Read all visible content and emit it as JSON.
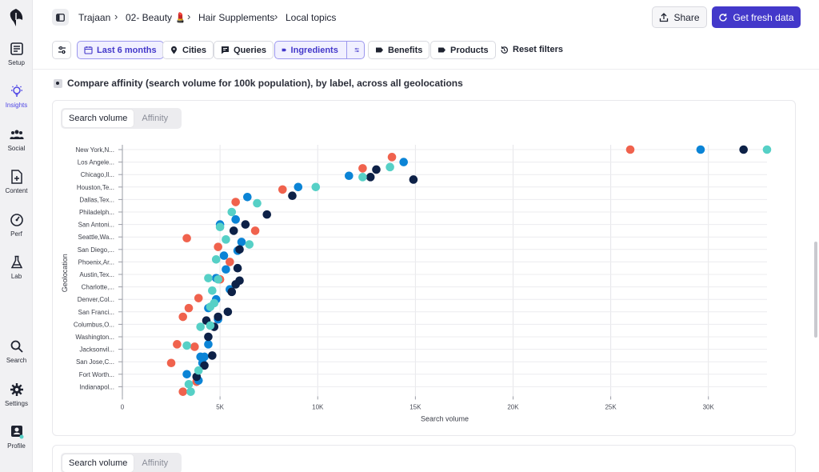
{
  "sidebar": {
    "items": [
      {
        "label": "Setup",
        "icon": "setup-icon"
      },
      {
        "label": "Insights",
        "icon": "lightbulb-icon",
        "active": true
      },
      {
        "label": "Social",
        "icon": "users-icon"
      },
      {
        "label": "Content",
        "icon": "document-plus-icon"
      },
      {
        "label": "Perf",
        "icon": "gauge-icon"
      },
      {
        "label": "Lab",
        "icon": "flask-icon"
      },
      {
        "label": "Search",
        "icon": "search-icon"
      },
      {
        "label": "Settings",
        "icon": "gear-icon"
      },
      {
        "label": "Profile",
        "icon": "profile-icon"
      }
    ]
  },
  "breadcrumb": [
    "Trajaan",
    "02- Beauty 💄",
    "Hair Supplements",
    "Local topics"
  ],
  "header": {
    "share_label": "Share",
    "fresh_label": "Get fresh data"
  },
  "filters": {
    "items": [
      "Last 6 months",
      "Cities",
      "Queries",
      "Ingredients",
      "Benefits",
      "Products"
    ],
    "reset_label": "Reset filters"
  },
  "section": {
    "title": "Compare affinity (search volume for 100k population), by label, across all geolocations"
  },
  "toggle": {
    "options": [
      "Search volume",
      "Affinity"
    ],
    "selected": "Search volume"
  },
  "colors": {
    "accent": "#4338ca",
    "series": [
      "#f0624d",
      "#0b84d6",
      "#0d2147",
      "#56d0c6"
    ]
  },
  "chart_data": {
    "type": "scatter",
    "xlabel": "Search volume",
    "ylabel": "Geolocation",
    "xlim": [
      0,
      33000
    ],
    "xticks": [
      0,
      5000,
      10000,
      15000,
      20000,
      25000,
      30000
    ],
    "xtick_labels": [
      "0",
      "5K",
      "10K",
      "15K",
      "20K",
      "25K",
      "30K"
    ],
    "categories": [
      "New York,N...",
      "Los Angele...",
      "Chicago,Il...",
      "Houston,Te...",
      "Dallas,Tex...",
      "Philadelph...",
      "San Antoni...",
      "Seattle,Wa...",
      "San Diego,...",
      "Phoenix,Ar...",
      "Austin,Tex...",
      "Charlotte,...",
      "Denver,Col...",
      "San Franci...",
      "Columbus,O...",
      "Washington...",
      "Jacksonvil...",
      "San Jose,C...",
      "Fort Worth...",
      "Indianapol..."
    ],
    "series": [
      {
        "values": [
          [
            26000,
            0
          ],
          [
            13800,
            0.6
          ],
          [
            12300,
            1.5
          ],
          [
            8200,
            3.2
          ],
          [
            5800,
            4.2
          ],
          [
            6800,
            6.5
          ],
          [
            3300,
            7.1
          ],
          [
            4900,
            7.8
          ],
          [
            5500,
            9.0
          ],
          [
            5000,
            10.4
          ],
          [
            3900,
            11.9
          ],
          [
            3400,
            12.7
          ],
          [
            3100,
            13.4
          ],
          [
            2800,
            15.6
          ],
          [
            3700,
            15.8
          ],
          [
            2500,
            17.1
          ],
          [
            3800,
            18.6
          ],
          [
            3100,
            19.4
          ]
        ]
      },
      {
        "values": [
          [
            29600,
            0
          ],
          [
            14400,
            1.0
          ],
          [
            11600,
            2.1
          ],
          [
            9000,
            3.0
          ],
          [
            6400,
            3.8
          ],
          [
            5800,
            5.6
          ],
          [
            5000,
            6.0
          ],
          [
            6100,
            7.4
          ],
          [
            5900,
            8.1
          ],
          [
            5200,
            8.5
          ],
          [
            5300,
            9.6
          ],
          [
            4800,
            10.3
          ],
          [
            5500,
            11.2
          ],
          [
            4800,
            12.0
          ],
          [
            4400,
            12.7
          ],
          [
            4400,
            15.6
          ],
          [
            4200,
            16.6
          ],
          [
            3900,
            18.5
          ],
          [
            4100,
            17.1
          ],
          [
            3300,
            18.0
          ],
          [
            4000,
            16.6
          ],
          [
            4900,
            13.6
          ]
        ]
      },
      {
        "values": [
          [
            31800,
            0
          ],
          [
            13000,
            1.6
          ],
          [
            12700,
            2.2
          ],
          [
            14900,
            2.4
          ],
          [
            8700,
            3.7
          ],
          [
            7400,
            5.2
          ],
          [
            5700,
            6.5
          ],
          [
            6300,
            6.0
          ],
          [
            6000,
            8.0
          ],
          [
            5900,
            9.5
          ],
          [
            6000,
            10.5
          ],
          [
            5800,
            10.8
          ],
          [
            5600,
            11.4
          ],
          [
            5400,
            13.0
          ],
          [
            4900,
            13.4
          ],
          [
            4300,
            13.7
          ],
          [
            4700,
            14.2
          ],
          [
            4400,
            15.0
          ],
          [
            4600,
            16.5
          ],
          [
            4200,
            17.3
          ],
          [
            3800,
            18.2
          ]
        ]
      },
      {
        "values": [
          [
            33000,
            0
          ],
          [
            13700,
            1.4
          ],
          [
            12300,
            2.2
          ],
          [
            9900,
            3.0
          ],
          [
            6900,
            4.3
          ],
          [
            5600,
            5.0
          ],
          [
            5000,
            6.2
          ],
          [
            5300,
            7.2
          ],
          [
            6500,
            7.6
          ],
          [
            4800,
            8.8
          ],
          [
            4400,
            10.3
          ],
          [
            4900,
            10.4
          ],
          [
            4600,
            11.3
          ],
          [
            4700,
            12.3
          ],
          [
            4500,
            12.6
          ],
          [
            4500,
            14.1
          ],
          [
            4000,
            14.2
          ],
          [
            3300,
            15.7
          ],
          [
            3900,
            17.7
          ],
          [
            3500,
            19.4
          ],
          [
            3400,
            18.8
          ]
        ]
      }
    ]
  }
}
